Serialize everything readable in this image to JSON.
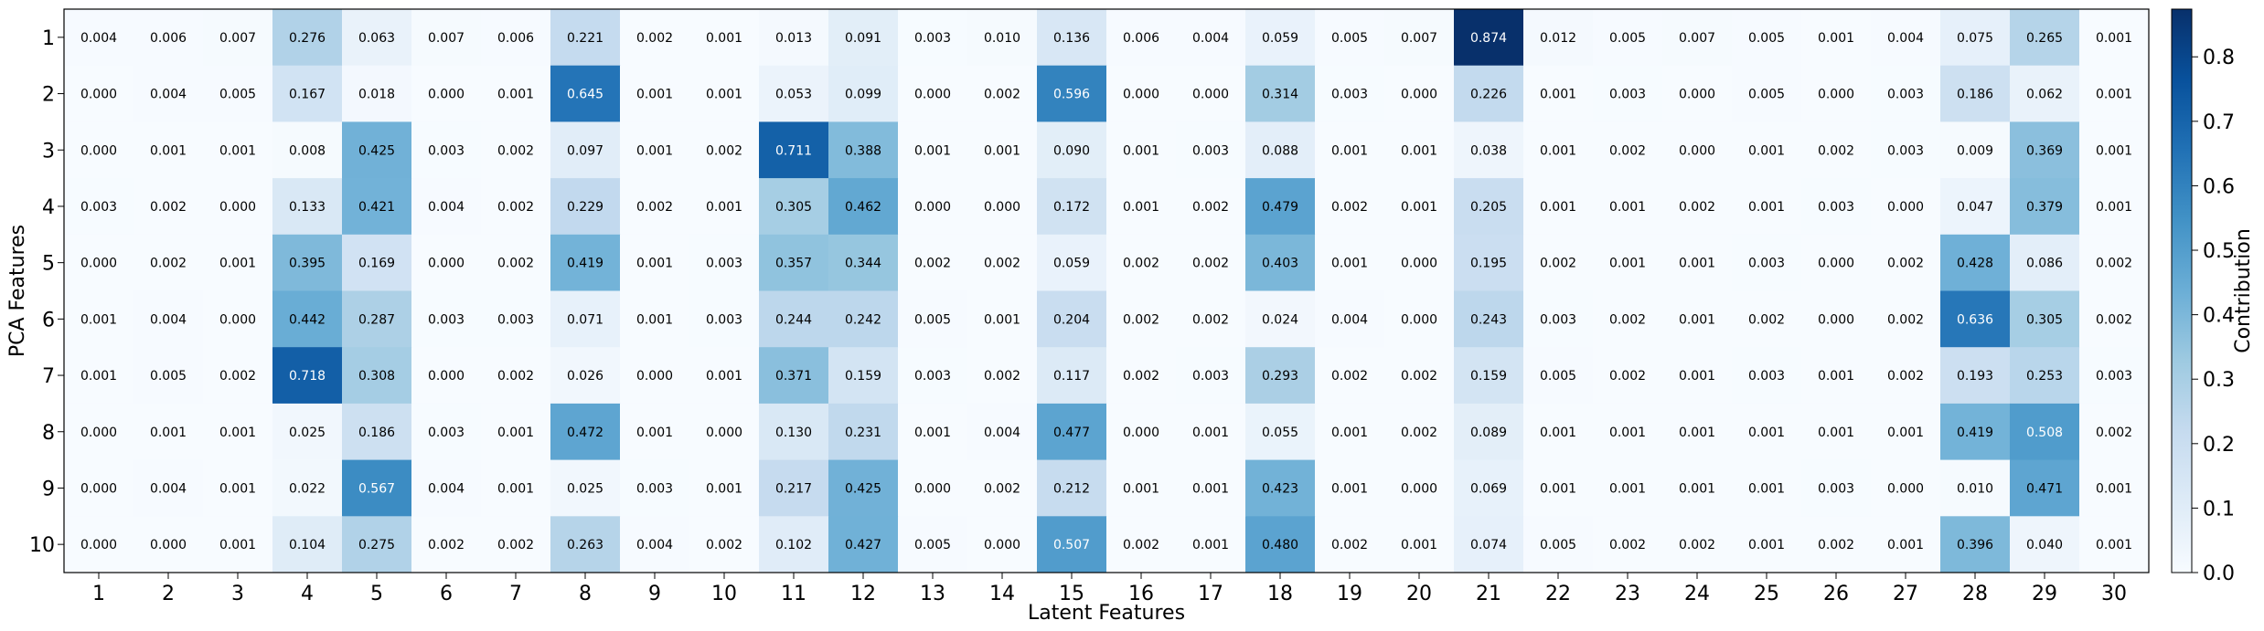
{
  "chart_data": {
    "type": "heatmap",
    "title": "",
    "xlabel": "Latent Features",
    "ylabel": "PCA Features",
    "colorbar_label": "Contribution",
    "colormap": "Blues",
    "colormap_stops": [
      "#f7fbff",
      "#deebf7",
      "#c6dbef",
      "#9ecae1",
      "#6baed6",
      "#4292c6",
      "#2171b5",
      "#08519c",
      "#08306b"
    ],
    "vmin": 0.0,
    "vmax": 0.874,
    "colorbar_ticks": [
      "0.0",
      "0.1",
      "0.2",
      "0.3",
      "0.4",
      "0.5",
      "0.6",
      "0.7",
      "0.8"
    ],
    "x_categories": [
      "1",
      "2",
      "3",
      "4",
      "5",
      "6",
      "7",
      "8",
      "9",
      "10",
      "11",
      "12",
      "13",
      "14",
      "15",
      "16",
      "17",
      "18",
      "19",
      "20",
      "21",
      "22",
      "23",
      "24",
      "25",
      "26",
      "27",
      "28",
      "29",
      "30"
    ],
    "y_categories": [
      "1",
      "2",
      "3",
      "4",
      "5",
      "6",
      "7",
      "8",
      "9",
      "10"
    ],
    "values": [
      [
        "0.004",
        "0.006",
        "0.007",
        "0.276",
        "0.063",
        "0.007",
        "0.006",
        "0.221",
        "0.002",
        "0.001",
        "0.013",
        "0.091",
        "0.003",
        "0.010",
        "0.136",
        "0.006",
        "0.004",
        "0.059",
        "0.005",
        "0.007",
        "0.874",
        "0.012",
        "0.005",
        "0.007",
        "0.005",
        "0.001",
        "0.004",
        "0.075",
        "0.265",
        "0.001"
      ],
      [
        "0.000",
        "0.004",
        "0.005",
        "0.167",
        "0.018",
        "0.000",
        "0.001",
        "0.645",
        "0.001",
        "0.001",
        "0.053",
        "0.099",
        "0.000",
        "0.002",
        "0.596",
        "0.000",
        "0.000",
        "0.314",
        "0.003",
        "0.000",
        "0.226",
        "0.001",
        "0.003",
        "0.000",
        "0.005",
        "0.000",
        "0.003",
        "0.186",
        "0.062",
        "0.001"
      ],
      [
        "0.000",
        "0.001",
        "0.001",
        "0.008",
        "0.425",
        "0.003",
        "0.002",
        "0.097",
        "0.001",
        "0.002",
        "0.711",
        "0.388",
        "0.001",
        "0.001",
        "0.090",
        "0.001",
        "0.003",
        "0.088",
        "0.001",
        "0.001",
        "0.038",
        "0.001",
        "0.002",
        "0.000",
        "0.001",
        "0.002",
        "0.003",
        "0.009",
        "0.369",
        "0.001"
      ],
      [
        "0.003",
        "0.002",
        "0.000",
        "0.133",
        "0.421",
        "0.004",
        "0.002",
        "0.229",
        "0.002",
        "0.001",
        "0.305",
        "0.462",
        "0.000",
        "0.000",
        "0.172",
        "0.001",
        "0.002",
        "0.479",
        "0.002",
        "0.001",
        "0.205",
        "0.001",
        "0.001",
        "0.002",
        "0.001",
        "0.003",
        "0.000",
        "0.047",
        "0.379",
        "0.001"
      ],
      [
        "0.000",
        "0.002",
        "0.001",
        "0.395",
        "0.169",
        "0.000",
        "0.002",
        "0.419",
        "0.001",
        "0.003",
        "0.357",
        "0.344",
        "0.002",
        "0.002",
        "0.059",
        "0.002",
        "0.002",
        "0.403",
        "0.001",
        "0.000",
        "0.195",
        "0.002",
        "0.001",
        "0.001",
        "0.003",
        "0.000",
        "0.002",
        "0.428",
        "0.086",
        "0.002"
      ],
      [
        "0.001",
        "0.004",
        "0.000",
        "0.442",
        "0.287",
        "0.003",
        "0.003",
        "0.071",
        "0.001",
        "0.003",
        "0.244",
        "0.242",
        "0.005",
        "0.001",
        "0.204",
        "0.002",
        "0.002",
        "0.024",
        "0.004",
        "0.000",
        "0.243",
        "0.003",
        "0.002",
        "0.001",
        "0.002",
        "0.000",
        "0.002",
        "0.636",
        "0.305",
        "0.002"
      ],
      [
        "0.001",
        "0.005",
        "0.002",
        "0.718",
        "0.308",
        "0.000",
        "0.002",
        "0.026",
        "0.000",
        "0.001",
        "0.371",
        "0.159",
        "0.003",
        "0.002",
        "0.117",
        "0.002",
        "0.003",
        "0.293",
        "0.002",
        "0.002",
        "0.159",
        "0.005",
        "0.002",
        "0.001",
        "0.003",
        "0.001",
        "0.002",
        "0.193",
        "0.253",
        "0.003"
      ],
      [
        "0.000",
        "0.001",
        "0.001",
        "0.025",
        "0.186",
        "0.003",
        "0.001",
        "0.472",
        "0.001",
        "0.000",
        "0.130",
        "0.231",
        "0.001",
        "0.004",
        "0.477",
        "0.000",
        "0.001",
        "0.055",
        "0.001",
        "0.002",
        "0.089",
        "0.001",
        "0.001",
        "0.001",
        "0.001",
        "0.001",
        "0.001",
        "0.419",
        "0.508",
        "0.002"
      ],
      [
        "0.000",
        "0.004",
        "0.001",
        "0.022",
        "0.567",
        "0.004",
        "0.001",
        "0.025",
        "0.003",
        "0.001",
        "0.217",
        "0.425",
        "0.000",
        "0.002",
        "0.212",
        "0.001",
        "0.001",
        "0.423",
        "0.001",
        "0.000",
        "0.069",
        "0.001",
        "0.001",
        "0.001",
        "0.001",
        "0.003",
        "0.000",
        "0.010",
        "0.471",
        "0.001"
      ],
      [
        "0.000",
        "0.000",
        "0.001",
        "0.104",
        "0.275",
        "0.002",
        "0.002",
        "0.263",
        "0.004",
        "0.002",
        "0.102",
        "0.427",
        "0.005",
        "0.000",
        "0.507",
        "0.002",
        "0.001",
        "0.480",
        "0.002",
        "0.001",
        "0.074",
        "0.005",
        "0.002",
        "0.002",
        "0.001",
        "0.002",
        "0.001",
        "0.396",
        "0.040",
        "0.001"
      ]
    ]
  }
}
